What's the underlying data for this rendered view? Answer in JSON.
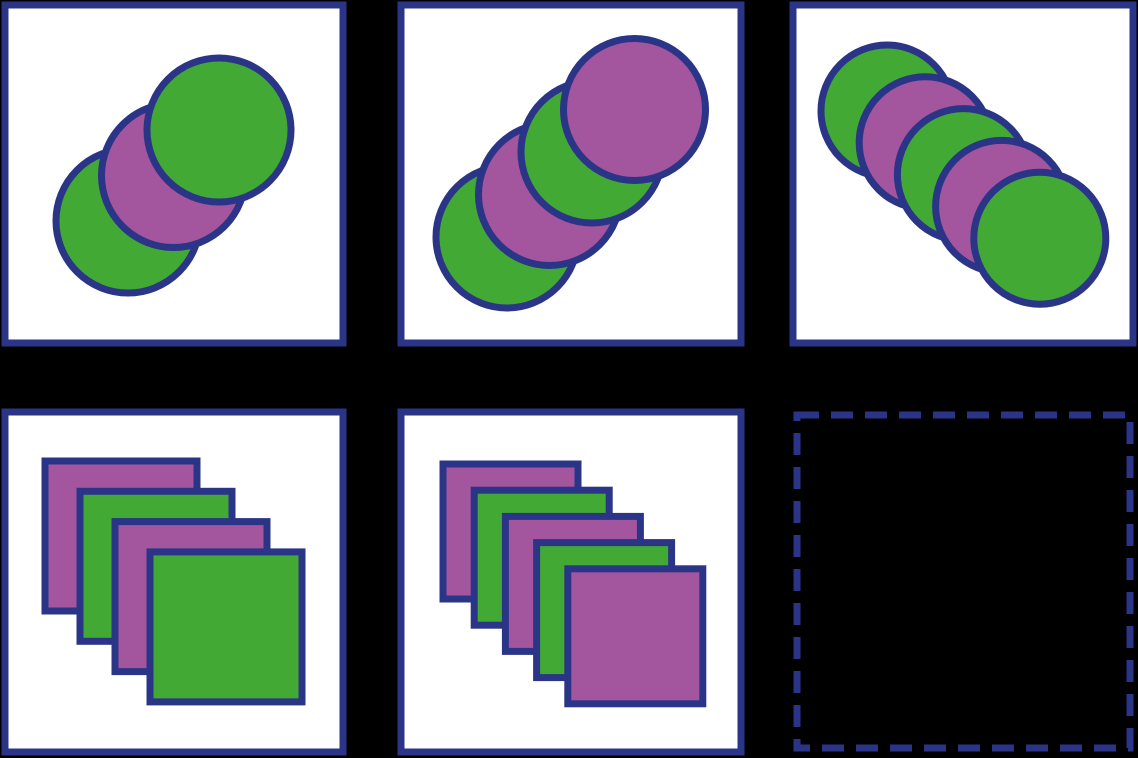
{
  "colors": {
    "background": "#000000",
    "frame": "#2b3587",
    "tile_fill": "#ffffff",
    "green": "#43a935",
    "purple": "#a3559e"
  },
  "puzzle": {
    "rows": [
      {
        "shape": "circle",
        "panels": [
          {
            "sequence": [
              "green",
              "purple",
              "green"
            ]
          },
          {
            "sequence": [
              "green",
              "purple",
              "green",
              "purple"
            ]
          },
          {
            "sequence": [
              "green",
              "purple",
              "green",
              "purple",
              "green"
            ]
          }
        ]
      },
      {
        "shape": "square",
        "panels": [
          {
            "sequence": [
              "purple",
              "green",
              "purple",
              "green"
            ]
          },
          {
            "sequence": [
              "purple",
              "green",
              "purple",
              "green",
              "purple"
            ]
          },
          {
            "sequence": [],
            "missing": true
          }
        ]
      }
    ]
  }
}
